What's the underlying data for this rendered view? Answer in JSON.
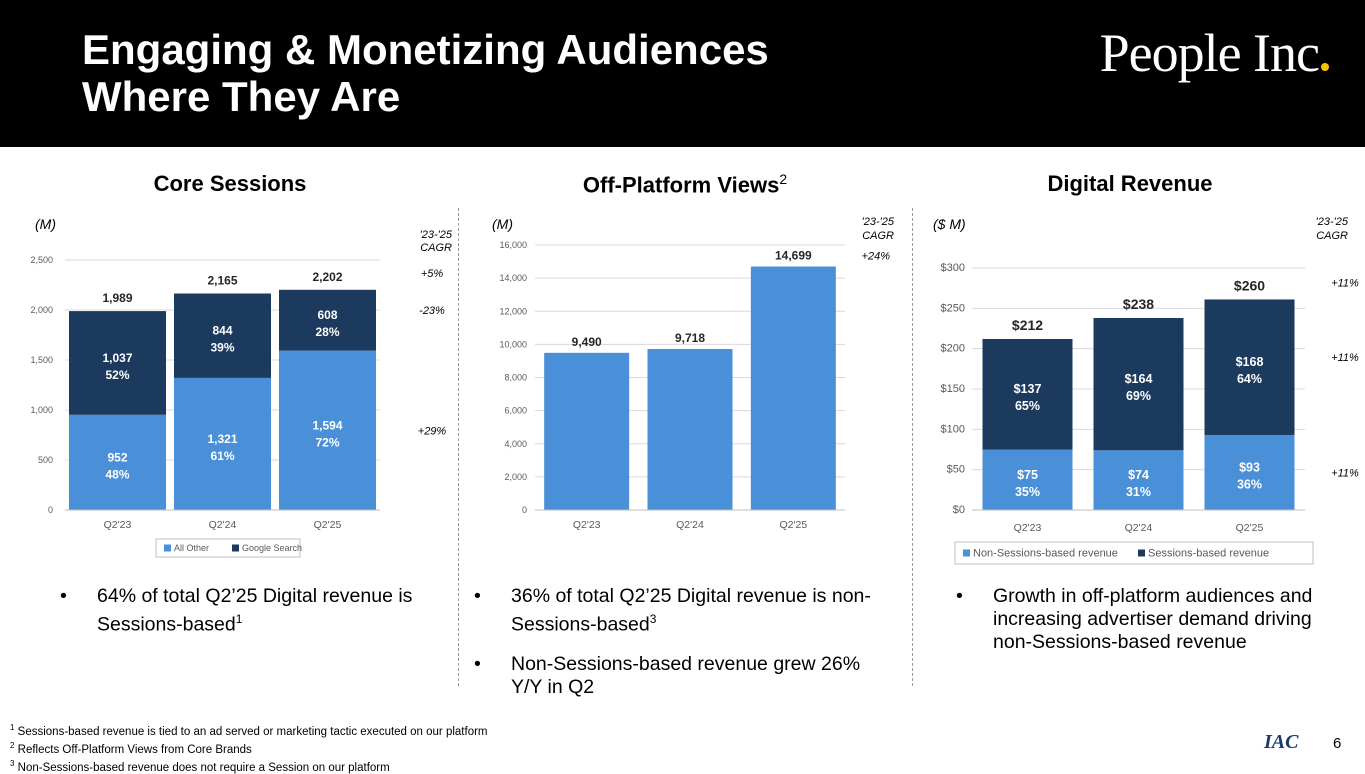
{
  "header": {
    "title_line1": "Engaging & Monetizing Audiences",
    "title_line2": "Where They Are",
    "logo_text": "People Inc"
  },
  "colors": {
    "light_blue": "#4a90d9",
    "dark_navy": "#1c3a5e",
    "header_bg": "#000000",
    "logo_dot": "#f5c400"
  },
  "sections": {
    "core_sessions": {
      "title": "Core Sessions"
    },
    "off_platform": {
      "title": "Off-Platform Views",
      "title_sup": "2"
    },
    "digital_revenue": {
      "title": "Digital Revenue"
    }
  },
  "chart_data": [
    {
      "type": "bar",
      "stacked": true,
      "title": "Core Sessions",
      "unit_label": "(M)",
      "cagr_label": [
        "'23-'25",
        "CAGR"
      ],
      "categories": [
        "Q2'23",
        "Q2'24",
        "Q2'25"
      ],
      "series": [
        {
          "name": "All Other",
          "values": [
            952,
            1321,
            1594
          ],
          "value_labels": [
            "952",
            "1,321",
            "1,594"
          ],
          "pct_labels": [
            "48%",
            "61%",
            "72%"
          ],
          "cagr": "+29%"
        },
        {
          "name": "Google Search",
          "values": [
            1037,
            844,
            608
          ],
          "value_labels": [
            "1,037",
            "844",
            "608"
          ],
          "pct_labels": [
            "52%",
            "39%",
            "28%"
          ],
          "cagr": "-23%"
        }
      ],
      "totals": [
        "1,989",
        "2,165",
        "2,202"
      ],
      "total_cagr": "+5%",
      "ylim": [
        0,
        2500
      ],
      "yticks": [
        0,
        500,
        1000,
        1500,
        2000,
        2500
      ],
      "ytick_labels": [
        "0",
        "500",
        "1,000",
        "1,500",
        "2,000",
        "2,500"
      ],
      "legend": [
        "All Other",
        "Google Search"
      ]
    },
    {
      "type": "bar",
      "title": "Off-Platform Views",
      "unit_label": "(M)",
      "cagr_label": [
        "'23-'25",
        "CAGR"
      ],
      "categories": [
        "Q2'23",
        "Q2'24",
        "Q2'25"
      ],
      "values": [
        9490,
        9718,
        14699
      ],
      "value_labels": [
        "9,490",
        "9,718",
        "14,699"
      ],
      "cagr": "+24%",
      "ylim": [
        0,
        16000
      ],
      "yticks": [
        0,
        2000,
        4000,
        6000,
        8000,
        10000,
        12000,
        14000,
        16000
      ],
      "ytick_labels": [
        "0",
        "2,000",
        "4,000",
        "6,000",
        "8,000",
        "10,000",
        "12,000",
        "14,000",
        "16,000"
      ]
    },
    {
      "type": "bar",
      "stacked": true,
      "title": "Digital Revenue",
      "unit_label": "($ M)",
      "cagr_label": [
        "'23-'25",
        "CAGR"
      ],
      "categories": [
        "Q2'23",
        "Q2'24",
        "Q2'25"
      ],
      "series": [
        {
          "name": "Non-Sessions-based revenue",
          "values": [
            75,
            74,
            93
          ],
          "value_labels": [
            "$75",
            "$74",
            "$93"
          ],
          "pct_labels": [
            "35%",
            "31%",
            "36%"
          ],
          "cagr": "+11%"
        },
        {
          "name": "Sessions-based revenue",
          "values": [
            137,
            164,
            168
          ],
          "value_labels": [
            "$137",
            "$164",
            "$168"
          ],
          "pct_labels": [
            "65%",
            "69%",
            "64%"
          ],
          "cagr": "+11%"
        }
      ],
      "totals": [
        "$212",
        "$238",
        "$260"
      ],
      "total_cagr": "+11%",
      "ylim": [
        0,
        300
      ],
      "yticks": [
        0,
        50,
        100,
        150,
        200,
        250,
        300
      ],
      "ytick_labels": [
        "$0",
        "$50",
        "$100",
        "$150",
        "$200",
        "$250",
        "$300"
      ],
      "legend": [
        "Non-Sessions-based revenue",
        "Sessions-based revenue"
      ]
    }
  ],
  "bullets": {
    "col1": [
      {
        "text": "64% of total Q2’25 Digital revenue is Sessions-based",
        "sup": "1"
      }
    ],
    "col2": [
      {
        "text": "36% of total Q2’25 Digital revenue is non-Sessions-based",
        "sup": "3"
      },
      {
        "text": "Non-Sessions-based revenue grew 26% Y/Y in Q2",
        "sup": ""
      }
    ],
    "col3": [
      {
        "text": "Growth in off-platform audiences and increasing advertiser demand driving non-Sessions-based revenue",
        "sup": ""
      }
    ]
  },
  "footnotes": [
    {
      "num": "1",
      "text": "Sessions-based revenue is tied to an ad served or marketing tactic executed on our platform"
    },
    {
      "num": "2",
      "text": "Reflects Off-Platform Views from Core Brands"
    },
    {
      "num": "3",
      "text": "Non-Sessions-based revenue does not require a Session on our platform"
    }
  ],
  "footer": {
    "iac_logo": "IAC",
    "page_number": "6"
  }
}
